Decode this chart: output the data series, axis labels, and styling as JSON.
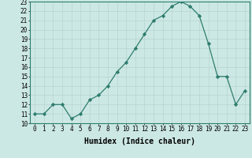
{
  "title": "",
  "xlabel": "Humidex (Indice chaleur)",
  "ylabel": "",
  "x_values": [
    0,
    1,
    2,
    3,
    4,
    5,
    6,
    7,
    8,
    9,
    10,
    11,
    12,
    13,
    14,
    15,
    16,
    17,
    18,
    19,
    20,
    21,
    22,
    23
  ],
  "y_values": [
    11,
    11,
    12,
    12,
    10.5,
    11,
    12.5,
    13,
    14,
    15.5,
    16.5,
    18,
    19.5,
    21,
    21.5,
    22.5,
    23,
    22.5,
    21.5,
    18.5,
    15,
    15,
    12,
    13.5
  ],
  "ylim_min": 10,
  "ylim_max": 23,
  "xlim_min": 0,
  "xlim_max": 23,
  "line_color": "#2e7d6e",
  "marker": "D",
  "marker_size": 2.2,
  "bg_color": "#cce8e4",
  "grid_color": "#b8d4d0",
  "tick_label_fontsize": 5.5,
  "xlabel_fontsize": 7.0,
  "linewidth": 0.9
}
